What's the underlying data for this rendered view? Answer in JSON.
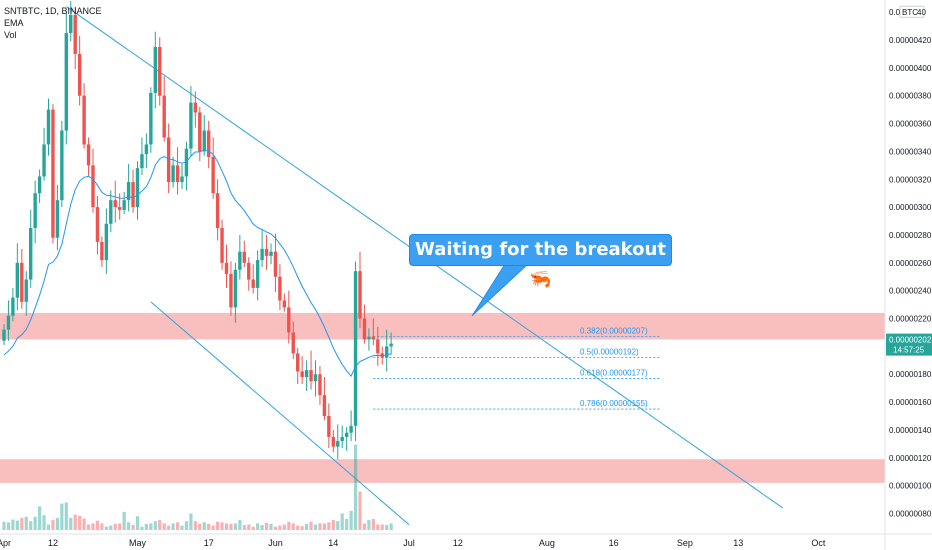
{
  "header": {
    "symbol_line": "SNTBTC, 1D, BINANCE",
    "indicator_1": "EMA",
    "indicator_2": "Vol"
  },
  "annotation": {
    "callout_text": "Waiting for the breakout 🦐"
  },
  "price_badge": {
    "value": "0.00000202",
    "countdown": "14:57:25"
  },
  "colors": {
    "up": "#26a69a",
    "down": "#ef5350",
    "ema": "#2196f3",
    "trendline": "#2aa3dc",
    "zone": "#f8b4b4",
    "fib": "#2196f3",
    "badge": "#26a69a",
    "callout": "#3ba0f2"
  },
  "chart_data": {
    "type": "candlestick",
    "title": "SNTBTC, 1D, BINANCE",
    "y_axis_unit": "BTC",
    "ylim": [
      7.4e-07,
      4.44e-06
    ],
    "y_ticks": [
      "0.00000440",
      "0.00000420",
      "0.00000400",
      "0.00000380",
      "0.00000360",
      "0.00000340",
      "0.00000320",
      "0.00000300",
      "0.00000280",
      "0.00000260",
      "0.00000240",
      "0.00000220",
      "0.00000200",
      "0.00000180",
      "0.00000160",
      "0.00000140",
      "0.00000120",
      "0.00000100",
      "0.00000080"
    ],
    "y_tick_values": [
      440,
      420,
      400,
      380,
      360,
      340,
      320,
      300,
      280,
      260,
      240,
      220,
      200,
      180,
      160,
      140,
      120,
      100,
      80
    ],
    "y_top_label": "0.0",
    "x_ticks": [
      {
        "label": "Apr",
        "day": 0
      },
      {
        "label": "12",
        "day": 11
      },
      {
        "label": "May",
        "day": 30
      },
      {
        "label": "17",
        "day": 46
      },
      {
        "label": "Jun",
        "day": 61
      },
      {
        "label": "14",
        "day": 74
      },
      {
        "label": "Jul",
        "day": 91
      },
      {
        "label": "12",
        "day": 102
      },
      {
        "label": "Aug",
        "day": 122
      },
      {
        "label": "16",
        "day": 137
      },
      {
        "label": "Sep",
        "day": 153
      },
      {
        "label": "13",
        "day": 165
      },
      {
        "label": "Oct",
        "day": 183
      }
    ],
    "candles_note": "close values in units of 1e-8 BTC, one per day starting Apr 1; open = previous close",
    "closes": [
      212,
      222,
      235,
      260,
      232,
      248,
      285,
      310,
      322,
      345,
      370,
      278,
      305,
      355,
      425,
      438,
      410,
      380,
      345,
      330,
      300,
      275,
      262,
      288,
      305,
      300,
      298,
      305,
      318,
      300,
      328,
      338,
      345,
      382,
      415,
      380,
      350,
      318,
      330,
      318,
      322,
      342,
      375,
      368,
      340,
      355,
      336,
      310,
      285,
      260,
      252,
      228,
      255,
      268,
      260,
      248,
      242,
      262,
      270,
      265,
      268,
      250,
      233,
      228,
      210,
      195,
      182,
      178,
      183,
      175,
      180,
      165,
      150,
      135,
      128,
      132,
      135,
      138,
      143,
      254,
      220,
      205,
      207,
      205,
      195,
      192,
      200,
      202
    ],
    "volumes": [
      15,
      14,
      19,
      17,
      22,
      24,
      16,
      24,
      43,
      27,
      10,
      18,
      22,
      48,
      50,
      22,
      28,
      26,
      21,
      10,
      12,
      17,
      12,
      6,
      8,
      11,
      12,
      33,
      14,
      9,
      25,
      6,
      11,
      12,
      16,
      18,
      12,
      8,
      12,
      14,
      8,
      16,
      30,
      16,
      11,
      14,
      11,
      8,
      15,
      14,
      12,
      11,
      12,
      18,
      9,
      10,
      6,
      12,
      9,
      13,
      11,
      6,
      8,
      10,
      15,
      12,
      8,
      7,
      11,
      15,
      10,
      12,
      12,
      14,
      18,
      16,
      30,
      20,
      35,
      155,
      70,
      12,
      18,
      20,
      10,
      10,
      9,
      12
    ],
    "ema": {
      "name": "EMA"
    },
    "resistance_zone": [
      2.05e-06,
      2.24e-06
    ],
    "support_zone": [
      1.02e-06,
      1.19e-06
    ],
    "fib_levels": [
      {
        "label": "0.382(0.00000207)",
        "value": 207
      },
      {
        "label": "0.5(0.00000192)",
        "value": 192
      },
      {
        "label": "0.618(0.00000177)",
        "value": 177
      },
      {
        "label": "0.786(0.00000155)",
        "value": 155
      }
    ],
    "trendline_upper": {
      "start": {
        "day": 14,
        "value": 444
      },
      "end": {
        "day": 175,
        "value": 84
      }
    },
    "trendline_lower": {
      "start": {
        "day": 33,
        "value": 232
      },
      "end": {
        "day": 91,
        "value": 72
      }
    },
    "last_price": 202
  }
}
